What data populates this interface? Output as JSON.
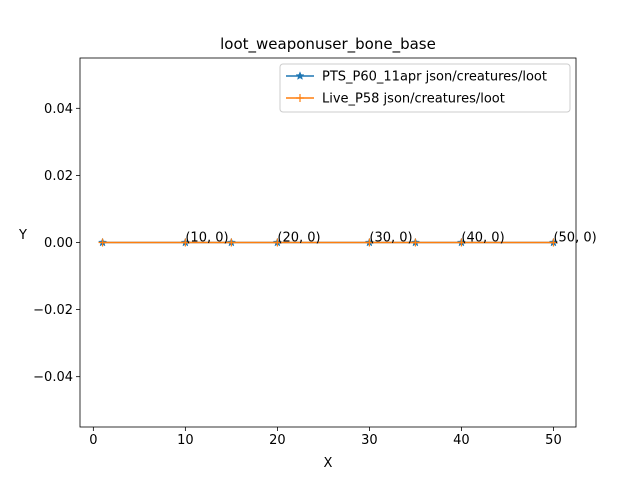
{
  "chart_data": {
    "type": "line",
    "title": "loot_weaponuser_bone_base",
    "xlabel": "X",
    "ylabel": "Y",
    "xlim": [
      -1.45,
      52.45
    ],
    "ylim": [
      -0.055,
      0.055
    ],
    "xticks": [
      0,
      10,
      20,
      30,
      40,
      50
    ],
    "yticks": [
      -0.04,
      -0.02,
      0.0,
      0.02,
      0.04
    ],
    "ytick_labels": [
      "−0.04",
      "−0.02",
      "0.00",
      "0.02",
      "0.04"
    ],
    "grid": false,
    "legend_position": "top-right",
    "series": [
      {
        "name": "PTS_P60_11apr json/creatures/loot",
        "color": "#1f77b4",
        "marker": "star",
        "x": [
          1,
          10,
          15,
          20,
          30,
          35,
          40,
          50
        ],
        "y": [
          0,
          0,
          0,
          0,
          0,
          0,
          0,
          0
        ]
      },
      {
        "name": "Live_P58 json/creatures/loot",
        "color": "#ff7f0e",
        "marker": "plus",
        "x": [
          1,
          10,
          15,
          20,
          30,
          35,
          40,
          50
        ],
        "y": [
          0,
          0,
          0,
          0,
          0,
          0,
          0,
          0
        ]
      }
    ],
    "annotations": [
      {
        "x": 10,
        "y": 0,
        "text": "(10, 0)"
      },
      {
        "x": 20,
        "y": 0,
        "text": "(20, 0)"
      },
      {
        "x": 30,
        "y": 0,
        "text": "(30, 0)"
      },
      {
        "x": 40,
        "y": 0,
        "text": "(40, 0)"
      },
      {
        "x": 50,
        "y": 0,
        "text": "(50, 0)"
      }
    ]
  }
}
